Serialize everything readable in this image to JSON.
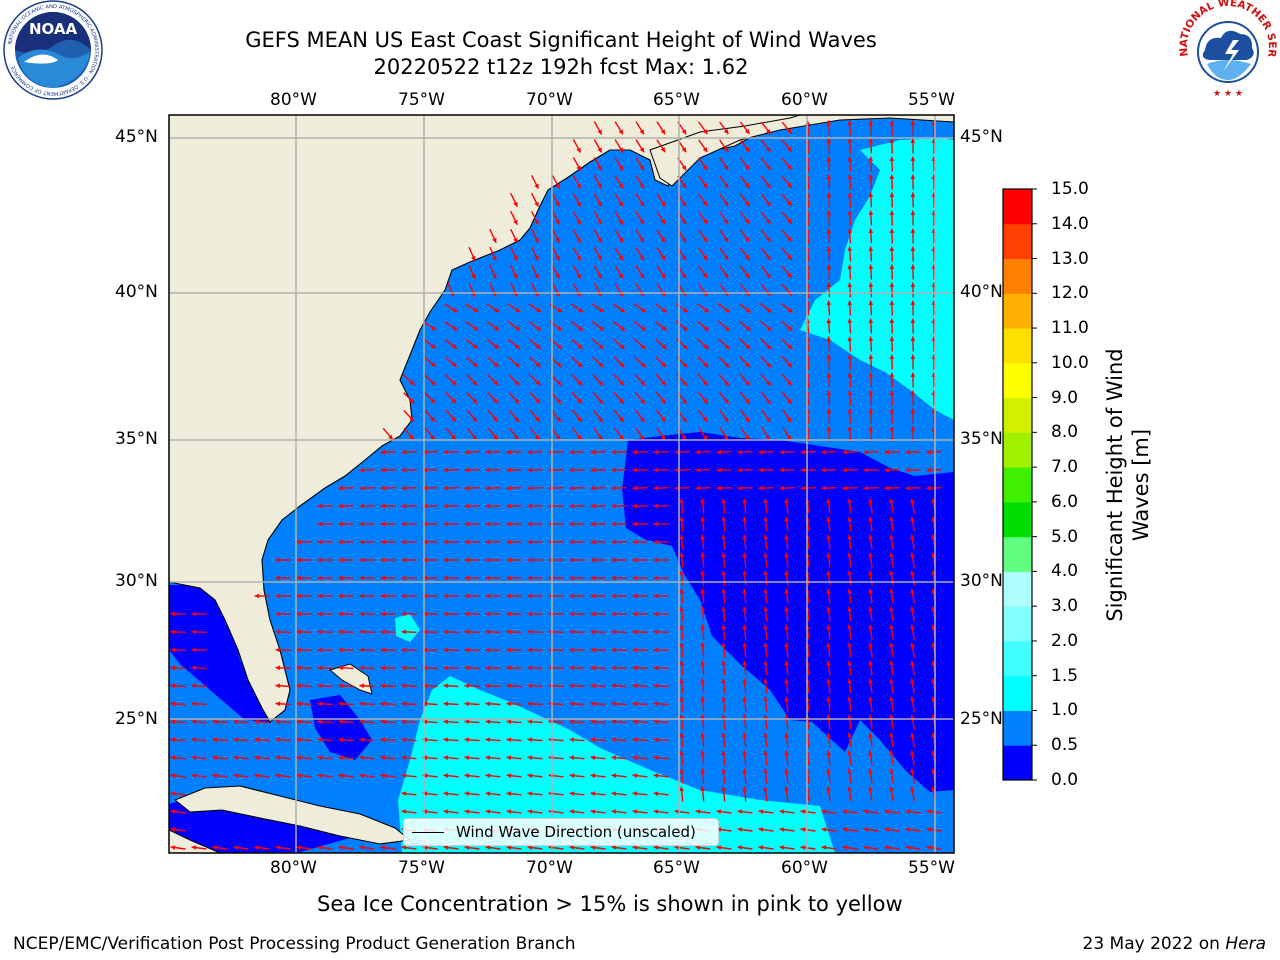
{
  "header": {
    "title_line1": "GEFS MEAN US East Coast Significant Height of Wind Waves",
    "title_line2": "20220522 t12z 192h fcst   Max: 1.62"
  },
  "logos": {
    "noaa_text": "NOAA",
    "noaa_ring_text": "NATIONAL OCEANIC AND ATMOSPHERIC ADMINISTRATION · U.S. DEPARTMENT OF COMMERCE",
    "nws_ring_text": "NATIONAL WEATHER SERVICE"
  },
  "map": {
    "lon_labels": [
      "80°W",
      "75°W",
      "70°W",
      "65°W",
      "60°W",
      "55°W"
    ],
    "lat_labels": [
      "45°N",
      "40°N",
      "35°N",
      "30°N",
      "25°N"
    ],
    "legend_label": "Wind Wave Direction (unscaled)",
    "land_color": "#efedda",
    "arrow_color": "#ff0000",
    "grid_color": "#b0b0b0"
  },
  "colorbar": {
    "label": "Significant Height of Wind Waves [m]",
    "ticks": [
      "0.0",
      "0.5",
      "1.0",
      "1.5",
      "2.0",
      "3.0",
      "4.0",
      "5.0",
      "6.0",
      "7.0",
      "8.0",
      "9.0",
      "10.0",
      "11.0",
      "12.0",
      "13.0",
      "14.0",
      "15.0"
    ],
    "colors": [
      "#0000ff",
      "#0080ff",
      "#00ffff",
      "#40ffff",
      "#80ffff",
      "#b0ffff",
      "#60ff80",
      "#00e000",
      "#40f000",
      "#a0f000",
      "#d0f000",
      "#ffff00",
      "#ffe000",
      "#ffb000",
      "#ff8000",
      "#ff4000",
      "#ff0000"
    ]
  },
  "notes": {
    "sea_ice": "Sea Ice Concentration > 15% is shown in pink to yellow"
  },
  "footer": {
    "left": "NCEP/EMC/Verification Post Processing Product Generation Branch",
    "date": "23 May 2022 on ",
    "machine": "Hera"
  }
}
